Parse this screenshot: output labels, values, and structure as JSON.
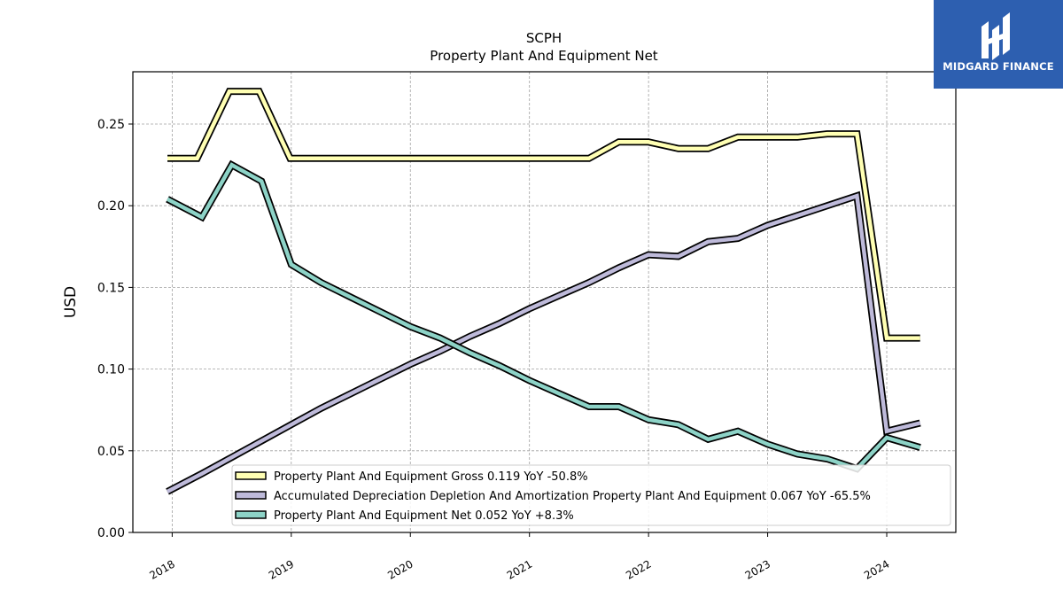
{
  "brand": {
    "name": "MIDGARD FINANCE",
    "bg_color": "#2d5fb0"
  },
  "chart_data": {
    "type": "line",
    "title": "SCPH",
    "subtitle": "Property Plant And Equipment Net",
    "ylabel": "USD",
    "xlabel": "",
    "ylim": [
      0,
      0.282
    ],
    "xlim": [
      2017.67,
      2024.58
    ],
    "y_ticks": [
      "0.00",
      "0.05",
      "0.10",
      "0.15",
      "0.20",
      "0.25"
    ],
    "y_tick_values": [
      0,
      0.05,
      0.1,
      0.15,
      0.2,
      0.25
    ],
    "x_ticks": [
      "2018",
      "2019",
      "2020",
      "2021",
      "2022",
      "2023",
      "2024"
    ],
    "x_tick_values": [
      2018,
      2019,
      2020,
      2021,
      2022,
      2023,
      2024
    ],
    "grid": true,
    "legend_position": "bottom-right",
    "series": [
      {
        "name": "Property Plant And Equipment Gross",
        "legend": "Property Plant And Equipment Gross  0.119 YoY -50.8%",
        "color": "#ffffb3",
        "x": [
          2017.96,
          2018.21,
          2018.48,
          2018.73,
          2018.99,
          2019.24,
          2019.5,
          2019.75,
          2020.0,
          2020.25,
          2020.5,
          2020.75,
          2021.0,
          2021.25,
          2021.5,
          2021.75,
          2022.0,
          2022.25,
          2022.5,
          2022.75,
          2023.0,
          2023.25,
          2023.5,
          2023.75,
          2024.0,
          2024.28
        ],
        "y": [
          0.229,
          0.229,
          0.27,
          0.27,
          0.229,
          0.229,
          0.229,
          0.229,
          0.229,
          0.229,
          0.229,
          0.229,
          0.229,
          0.229,
          0.229,
          0.239,
          0.239,
          0.235,
          0.235,
          0.242,
          0.242,
          0.242,
          0.244,
          0.244,
          0.119,
          0.119
        ]
      },
      {
        "name": "Accumulated Depreciation Depletion And Amortization Property Plant And Equipment",
        "legend": "Accumulated Depreciation Depletion And Amortization Property Plant And Equipment  0.067 YoY -65.5%",
        "color": "#bebada",
        "x": [
          2017.96,
          2018.25,
          2018.5,
          2018.75,
          2019.0,
          2019.25,
          2019.5,
          2019.75,
          2020.0,
          2020.25,
          2020.5,
          2020.75,
          2021.0,
          2021.25,
          2021.5,
          2021.75,
          2022.0,
          2022.25,
          2022.5,
          2022.75,
          2023.0,
          2023.25,
          2023.5,
          2023.75,
          2024.0,
          2024.28
        ],
        "y": [
          0.025,
          0.036,
          0.046,
          0.056,
          0.066,
          0.076,
          0.085,
          0.094,
          0.103,
          0.111,
          0.12,
          0.128,
          0.137,
          0.145,
          0.153,
          0.162,
          0.17,
          0.169,
          0.178,
          0.18,
          0.188,
          0.194,
          0.2,
          0.206,
          0.062,
          0.067
        ]
      },
      {
        "name": "Property Plant And Equipment Net",
        "legend": "Property Plant And Equipment Net  0.052 YoY +8.3%",
        "color": "#8dd3c7",
        "x": [
          2017.96,
          2018.25,
          2018.5,
          2018.75,
          2019.0,
          2019.25,
          2019.5,
          2019.75,
          2020.0,
          2020.25,
          2020.5,
          2020.75,
          2021.0,
          2021.25,
          2021.5,
          2021.75,
          2022.0,
          2022.25,
          2022.5,
          2022.75,
          2023.0,
          2023.25,
          2023.5,
          2023.75,
          2024.0,
          2024.28
        ],
        "y": [
          0.204,
          0.193,
          0.225,
          0.215,
          0.164,
          0.153,
          0.144,
          0.135,
          0.126,
          0.119,
          0.11,
          0.102,
          0.093,
          0.085,
          0.077,
          0.077,
          0.069,
          0.066,
          0.057,
          0.062,
          0.054,
          0.048,
          0.045,
          0.039,
          0.058,
          0.052
        ]
      }
    ]
  }
}
